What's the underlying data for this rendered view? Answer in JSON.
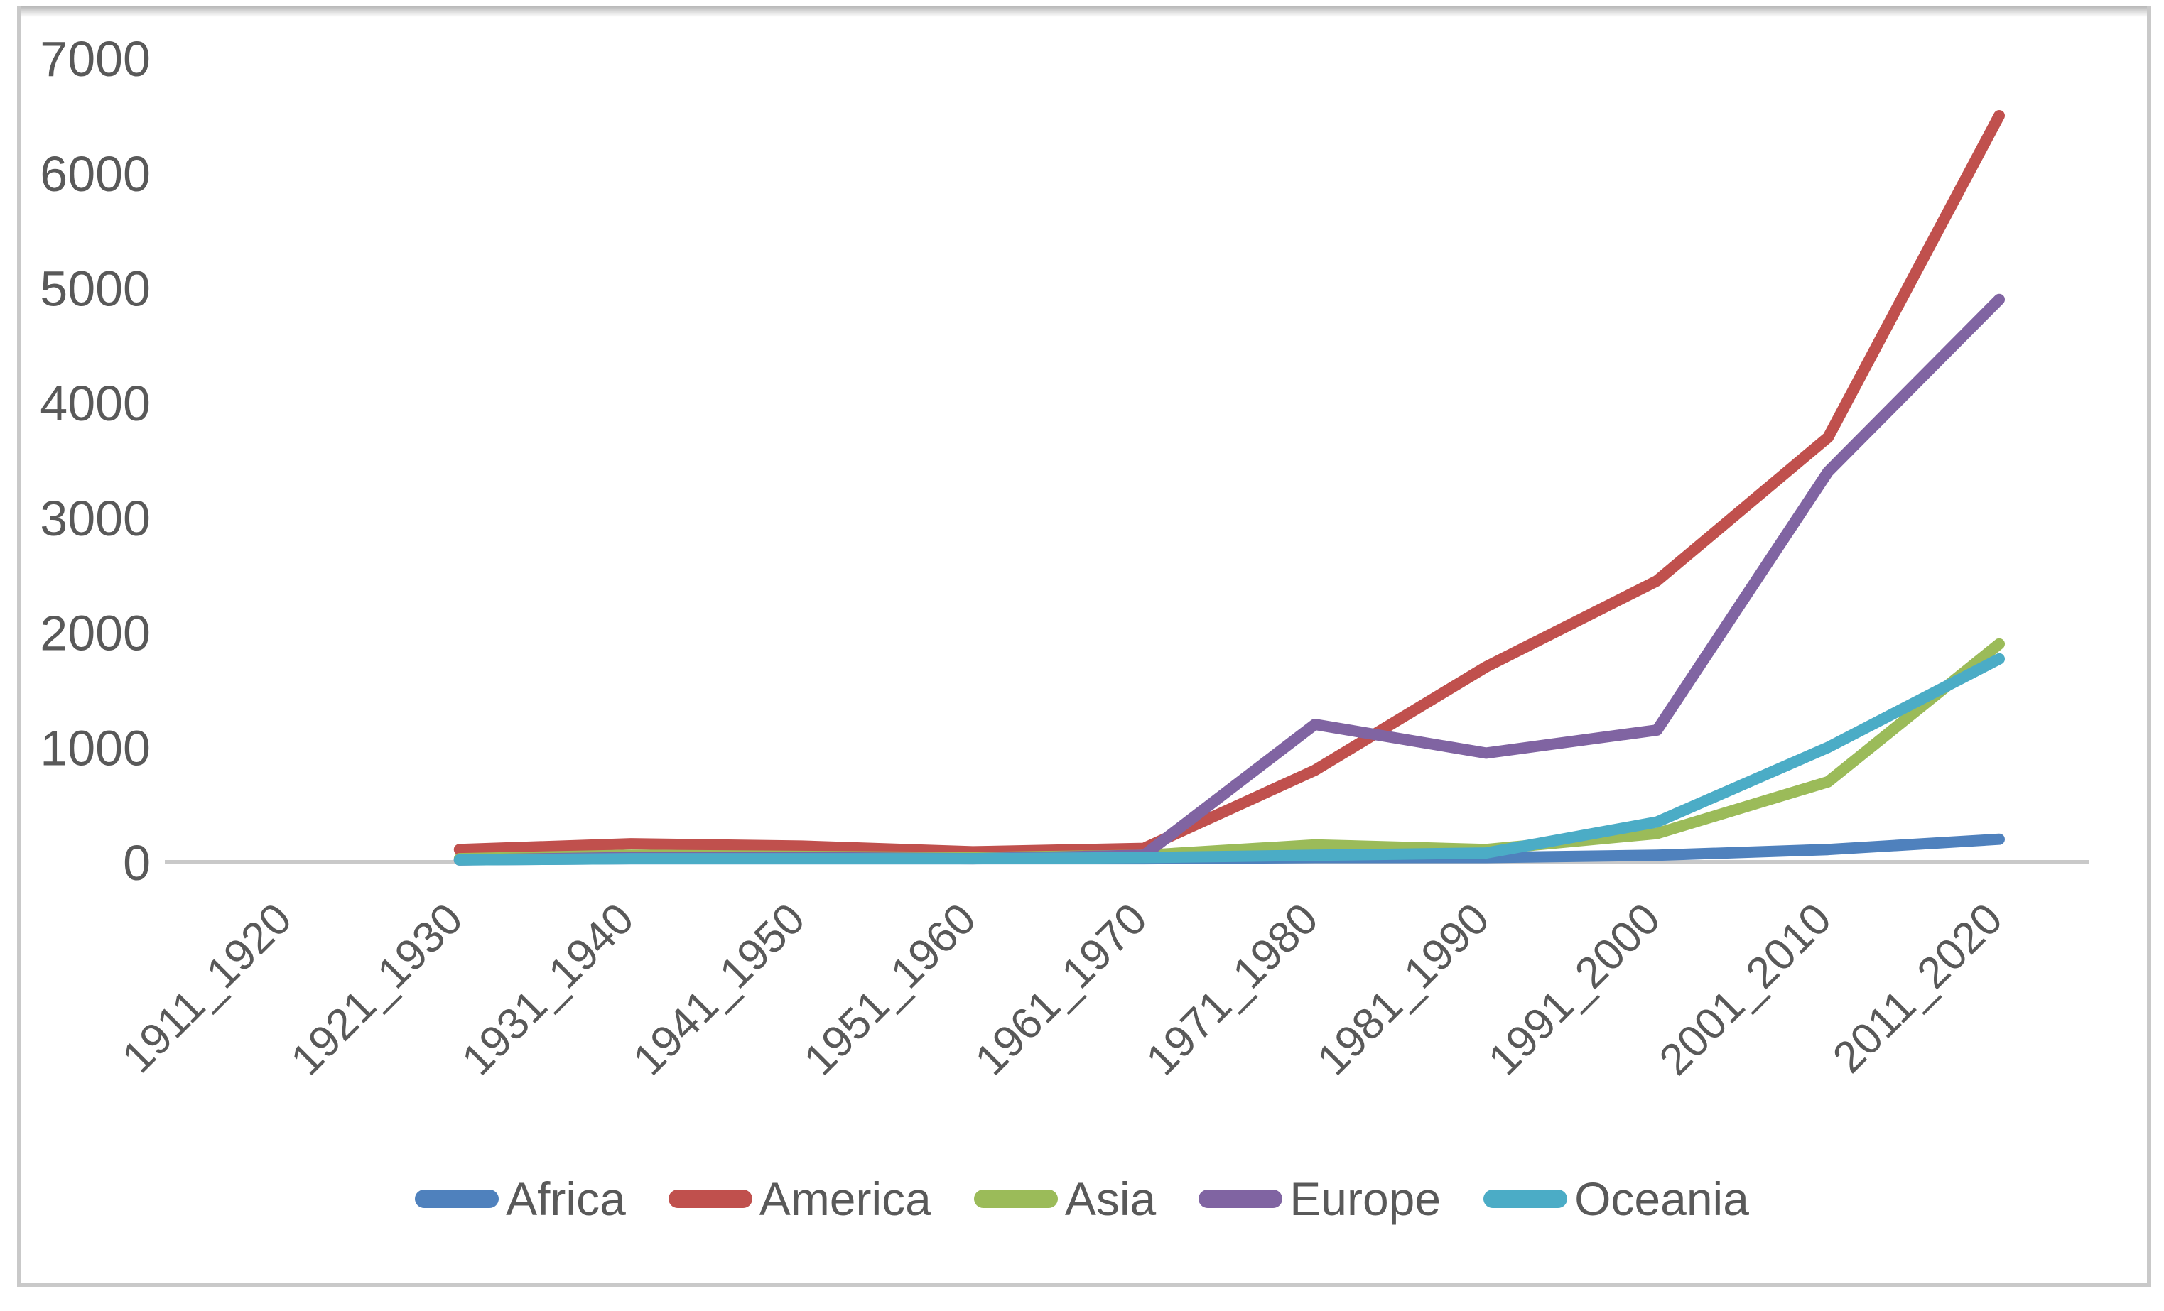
{
  "chart_data": {
    "type": "line",
    "title": "",
    "xlabel": "",
    "ylabel": "",
    "categories": [
      "1911_1920",
      "1921_1930",
      "1931_1940",
      "1941_1950",
      "1951_1960",
      "1961_1970",
      "1971_1980",
      "1981_1990",
      "1991_2000",
      "2001_2010",
      "2011_2020"
    ],
    "y_ticks": [
      0,
      1000,
      2000,
      3000,
      4000,
      5000,
      6000,
      7000
    ],
    "ylim": [
      0,
      7000
    ],
    "grid": "off",
    "legend_position": "bottom",
    "series": [
      {
        "name": "Africa",
        "color": "#4F81BD",
        "values": [
          null,
          20,
          30,
          30,
          30,
          30,
          40,
          40,
          60,
          110,
          200
        ]
      },
      {
        "name": "America",
        "color": "#C0504D",
        "values": [
          null,
          110,
          160,
          140,
          90,
          120,
          800,
          1700,
          2450,
          3700,
          6500
        ]
      },
      {
        "name": "Asia",
        "color": "#9BBB59",
        "values": [
          null,
          30,
          60,
          50,
          40,
          60,
          150,
          110,
          250,
          700,
          1900
        ]
      },
      {
        "name": "Europe",
        "color": "#8064A2",
        "values": [
          null,
          20,
          40,
          40,
          30,
          60,
          1200,
          950,
          1150,
          3400,
          4900
        ]
      },
      {
        "name": "Oceania",
        "color": "#4BACC6",
        "values": [
          null,
          20,
          30,
          30,
          30,
          40,
          60,
          80,
          350,
          1000,
          1770
        ]
      }
    ],
    "colors": {
      "axis_line": "#c9c9c9",
      "tick_text": "#595959",
      "frame_border": "#c9c9c9",
      "background": "#ffffff"
    }
  }
}
